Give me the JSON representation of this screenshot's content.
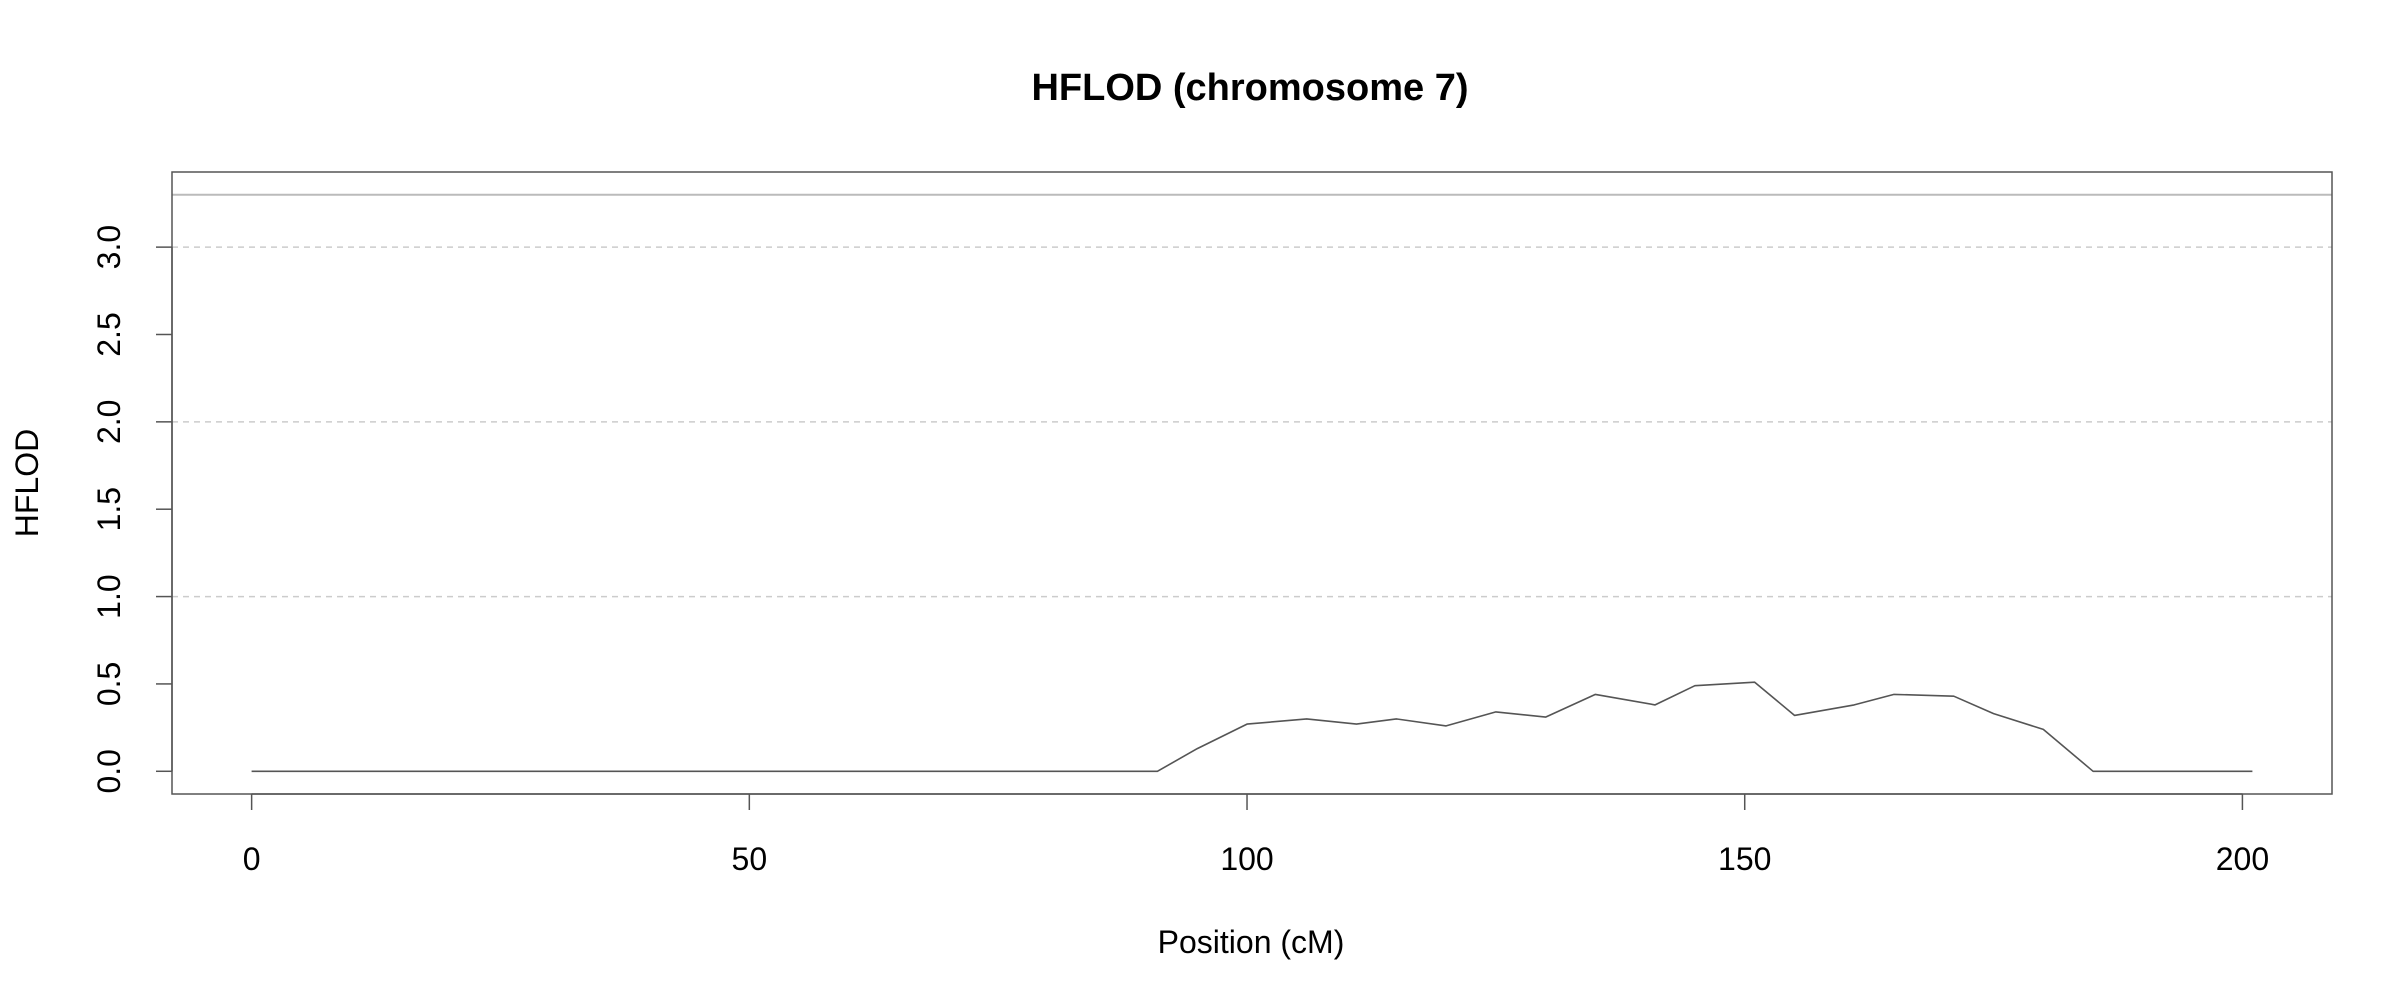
{
  "chart_data": {
    "type": "line",
    "title": "HFLOD (chromosome 7)",
    "xlabel": "Position (cM)",
    "ylabel": "HFLOD",
    "xlim": [
      -8,
      209
    ],
    "ylim": [
      -0.13,
      3.43
    ],
    "x_ticks": [
      0,
      50,
      100,
      150,
      200
    ],
    "x_tick_labels": [
      "0",
      "50",
      "100",
      "150",
      "200"
    ],
    "y_ticks": [
      0.0,
      0.5,
      1.0,
      1.5,
      2.0,
      2.5,
      3.0
    ],
    "y_tick_labels": [
      "0.0",
      "0.5",
      "1.0",
      "1.5",
      "2.0",
      "2.5",
      "3.0"
    ],
    "gridlines_y": [
      1.0,
      2.0,
      3.0
    ],
    "threshold": 3.3,
    "grid": true,
    "colors": {
      "line": "#555555",
      "threshold": "#bbbbbb",
      "grid": "#cccccc",
      "frame": "#555555"
    },
    "series": [
      {
        "x": [
          0,
          10,
          20,
          30,
          40,
          50,
          60,
          70,
          80,
          91,
          95,
          100,
          106,
          111,
          115,
          120,
          125,
          130,
          135,
          141,
          145,
          151,
          155,
          161,
          165,
          171,
          175,
          180,
          185,
          190,
          195,
          201
        ],
        "y": [
          0,
          0,
          0,
          0,
          0,
          0,
          0,
          0,
          0,
          0,
          0.13,
          0.27,
          0.3,
          0.27,
          0.3,
          0.26,
          0.34,
          0.31,
          0.44,
          0.38,
          0.49,
          0.51,
          0.32,
          0.38,
          0.44,
          0.43,
          0.33,
          0.24,
          0,
          0,
          0,
          0
        ]
      }
    ]
  }
}
